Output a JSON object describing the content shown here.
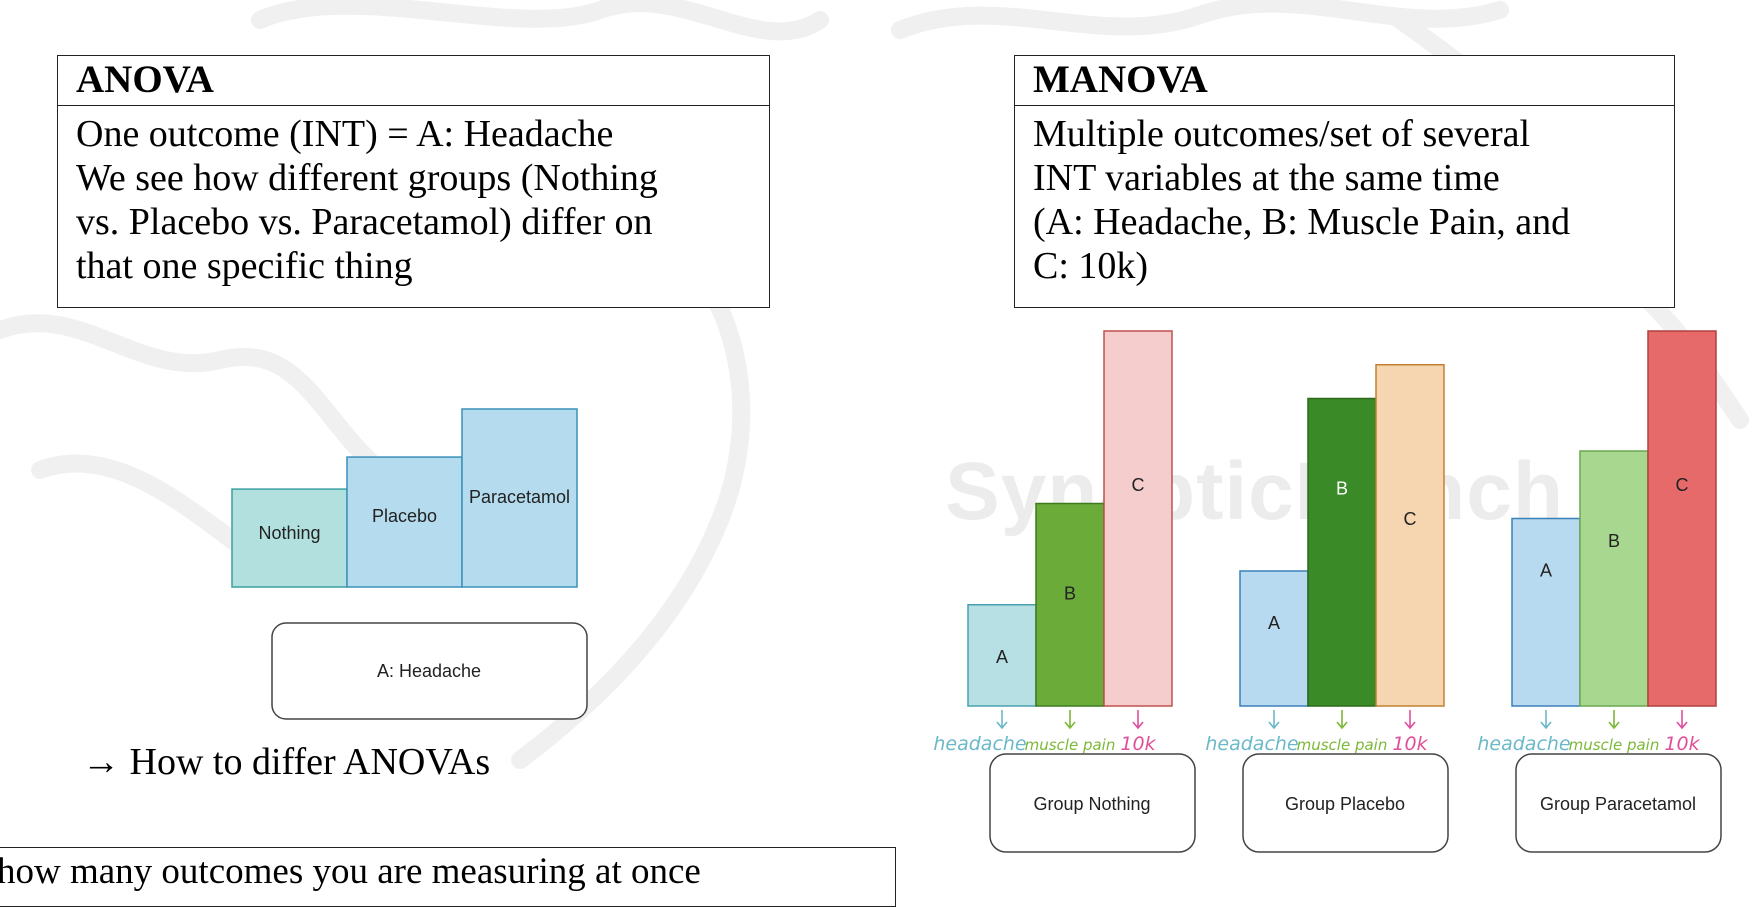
{
  "anova_box": {
    "title": "ANOVA",
    "lines": [
      "One outcome (INT) = A: Headache",
      "We see how different groups (Nothing",
      "vs. Placebo vs. Paracetamol) differ on",
      "that one specific thing"
    ]
  },
  "manova_box": {
    "title": "MANOVA",
    "lines": [
      "Multiple outcomes/set of several",
      "INT variables at the same time",
      "(A: Headache, B: Muscle Pain, and",
      "C: 10k)"
    ]
  },
  "anova_diagram": {
    "bars": [
      {
        "label": "Nothing",
        "level": 0.55,
        "color": "#b2e0de",
        "stroke": "#3aa0a0"
      },
      {
        "label": "Placebo",
        "level": 0.73,
        "color": "#b4dcee",
        "stroke": "#3a90b8"
      },
      {
        "label": "Paracetamol",
        "level": 1.0,
        "color": "#b4dcee",
        "stroke": "#3a90b8"
      }
    ],
    "outcome_label": "A: Headache"
  },
  "arrow_note": "→ How to differ ANOVAs",
  "bottom_note": "how many outcomes you are measuring at once",
  "watermark": "SynapticMunch",
  "manova_diagram": {
    "outcome_annotations": {
      "a": "headache",
      "b": "muscle pain",
      "c": "10k"
    },
    "groups": [
      {
        "label": "Group Nothing",
        "bars": [
          {
            "label": "A",
            "level": 0.27,
            "color": "#b6e0e4",
            "stroke": "#4aa0b0"
          },
          {
            "label": "B",
            "level": 0.54,
            "color": "#6aab3a",
            "stroke": "#3c7a20"
          },
          {
            "label": "C",
            "level": 1.0,
            "color": "#f5cdcd",
            "stroke": "#c05050"
          }
        ]
      },
      {
        "label": "Group Placebo",
        "bars": [
          {
            "label": "A",
            "level": 0.36,
            "color": "#b8daf0",
            "stroke": "#3a80b8"
          },
          {
            "label": "B",
            "level": 0.82,
            "color": "#3a8a28",
            "stroke": "#2a6a18"
          },
          {
            "label": "C",
            "level": 0.91,
            "color": "#f6d6b0",
            "stroke": "#c08030"
          }
        ]
      },
      {
        "label": "Group Paracetamol",
        "bars": [
          {
            "label": "A",
            "level": 0.5,
            "color": "#b8daf0",
            "stroke": "#3a80b8"
          },
          {
            "label": "B",
            "level": 0.68,
            "color": "#a8d890",
            "stroke": "#6aa850"
          },
          {
            "label": "C",
            "level": 1.0,
            "color": "#e66a6a",
            "stroke": "#b04040"
          }
        ]
      }
    ]
  },
  "colors": {
    "annotation_a": "#6ab8c8",
    "annotation_b": "#7ab838",
    "annotation_c": "#e0509a"
  }
}
